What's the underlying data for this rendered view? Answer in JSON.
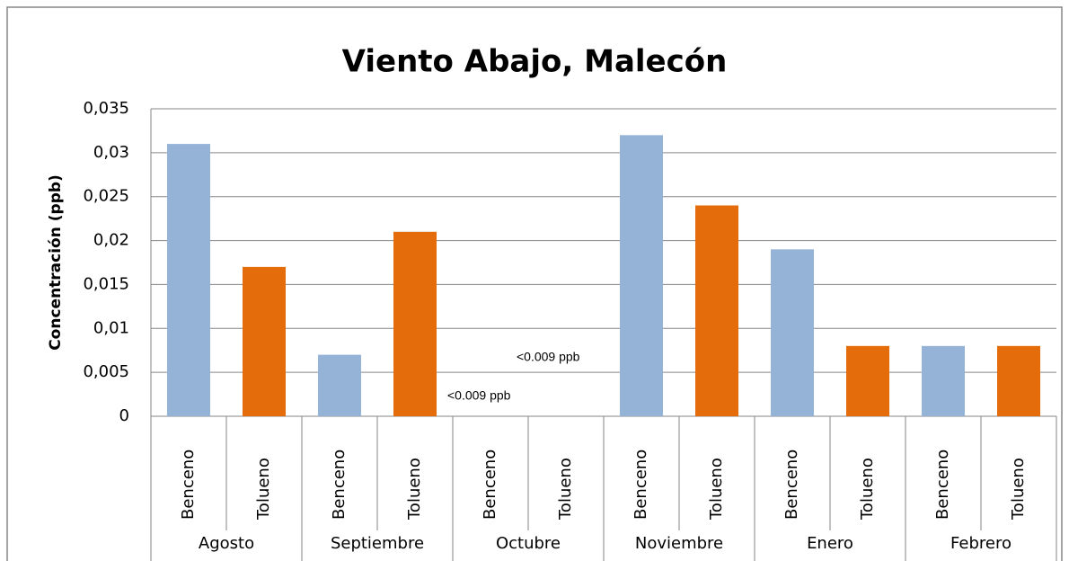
{
  "chart_data": {
    "type": "bar",
    "title": "Viento Abajo, Malecón",
    "y_label": "Concentración (ppb)",
    "groups": [
      "Agosto",
      "Septiembre",
      "Octubre",
      "Noviembre",
      "Enero",
      "Febrero"
    ],
    "categories": [
      "Benceno",
      "Tolueno",
      "Benceno",
      "Tolueno",
      "Benceno",
      "Tolueno",
      "Benceno",
      "Tolueno",
      "Benceno",
      "Tolueno",
      "Benceno",
      "Tolueno"
    ],
    "values": [
      0.031,
      0.017,
      0.007,
      0.021,
      null,
      null,
      0.032,
      0.024,
      0.019,
      0.008,
      0.008,
      0.008
    ],
    "colors": [
      "#95b3d7",
      "#e46c0a",
      "#95b3d7",
      "#e46c0a",
      "#95b3d7",
      "#e46c0a",
      "#95b3d7",
      "#e46c0a",
      "#95b3d7",
      "#e46c0a",
      "#95b3d7",
      "#e46c0a"
    ],
    "annotations": [
      "<0.009 ppb",
      "<0.009 ppb"
    ],
    "ylim": [
      0,
      0.035
    ],
    "yticks": [
      0,
      {
        "value": 0.005,
        "label": "0,005"
      },
      {
        "value": 0.01,
        "label": "0,01"
      },
      {
        "value": 0.015,
        "label": "0,015"
      },
      {
        "value": 0.02,
        "label": "0,02"
      },
      {
        "value": 0.025,
        "label": "0,025"
      },
      {
        "value": 0.03,
        "label": "0,03"
      },
      {
        "value": 0.035,
        "label": "0,035"
      }
    ],
    "grid": true
  }
}
